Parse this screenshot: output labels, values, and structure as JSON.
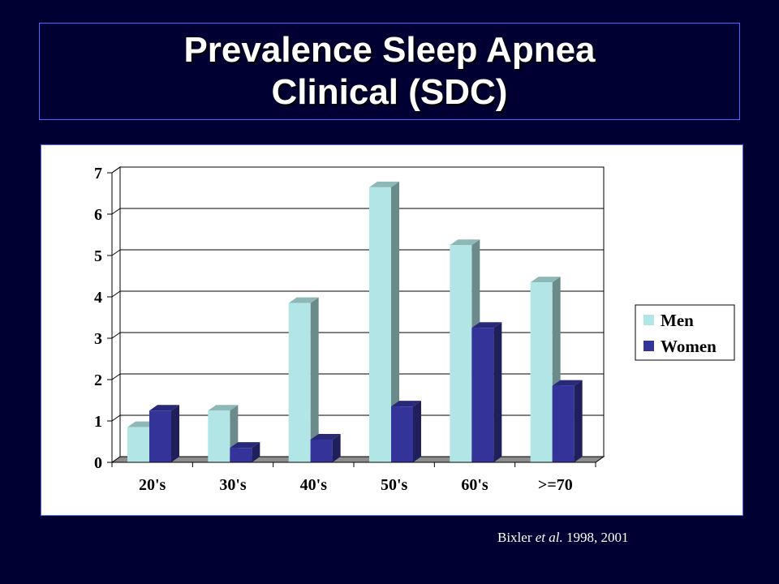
{
  "slide": {
    "title_line1": "Prevalence Sleep Apnea",
    "title_line2": "Clinical (SDC)",
    "citation_author": "Bixler",
    "citation_etal": "et al.",
    "citation_years": "1998, 2001"
  },
  "colors": {
    "background": "#000033",
    "men": "#b2e6e6",
    "women": "#333399"
  },
  "chart_data": {
    "type": "bar",
    "categories": [
      "20's",
      "30's",
      "40's",
      "50's",
      "60's",
      ">=70"
    ],
    "series": [
      {
        "name": "Men",
        "values": [
          0.85,
          1.25,
          3.85,
          6.65,
          5.25,
          4.35
        ]
      },
      {
        "name": "Women",
        "values": [
          1.25,
          0.35,
          0.55,
          1.35,
          3.25,
          1.85
        ]
      }
    ],
    "yticks": [
      "0",
      "1",
      "2",
      "3",
      "4",
      "5",
      "6",
      "7"
    ],
    "ylim": [
      0,
      7
    ],
    "grid": true,
    "legend": "right",
    "style": "3d-bar"
  }
}
